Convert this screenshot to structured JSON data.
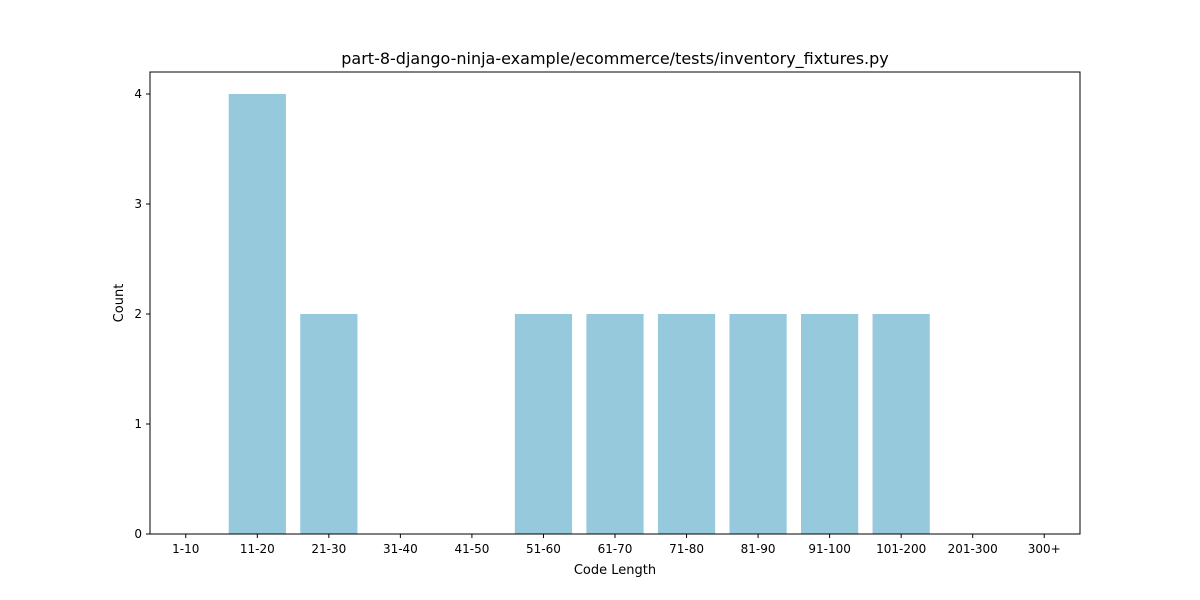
{
  "chart_data": {
    "type": "bar",
    "title": "part-8-django-ninja-example/ecommerce/tests/inventory_fixtures.py",
    "xlabel": "Code Length",
    "ylabel": "Count",
    "categories": [
      "1-10",
      "11-20",
      "21-30",
      "31-40",
      "41-50",
      "51-60",
      "61-70",
      "71-80",
      "81-90",
      "91-100",
      "101-200",
      "201-300",
      "300+"
    ],
    "values": [
      0,
      4,
      2,
      0,
      0,
      2,
      2,
      2,
      2,
      2,
      2,
      0,
      0
    ],
    "yticks": [
      0,
      1,
      2,
      3,
      4
    ],
    "ylim": [
      0,
      4.2
    ],
    "grid": false,
    "bar_color": "#96c9dc"
  }
}
